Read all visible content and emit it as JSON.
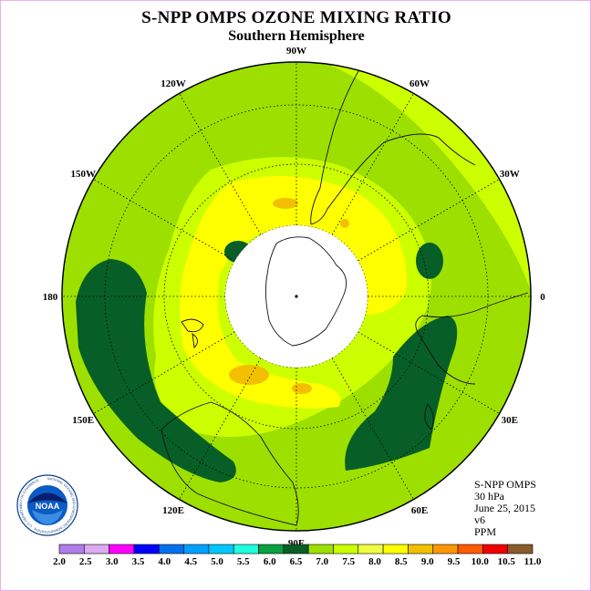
{
  "title": "S-NPP OMPS OZONE MIXING RATIO",
  "subtitle": "Southern Hemisphere",
  "info": {
    "instrument": "S-NPP OMPS",
    "pressure": "30 hPa",
    "date": "June 25, 2015",
    "version": "v6",
    "unit": "PPM"
  },
  "logo": {
    "text": "NOAA",
    "ring_text": "NATIONAL OCEANIC AND ATMOSPHERIC ADMINISTRATION · U.S. DEPARTMENT OF COMMERCE"
  },
  "map": {
    "projection": "polar-stereographic-south",
    "longitude_labels": [
      {
        "text": "90W",
        "lon": -90
      },
      {
        "text": "60W",
        "lon": -60
      },
      {
        "text": "30W",
        "lon": -30
      },
      {
        "text": "0",
        "lon": 0
      },
      {
        "text": "30E",
        "lon": 30
      },
      {
        "text": "60E",
        "lon": 60
      },
      {
        "text": "90E",
        "lon": 90
      },
      {
        "text": "120E",
        "lon": 120
      },
      {
        "text": "150E",
        "lon": 150
      },
      {
        "text": "180",
        "lon": 180
      },
      {
        "text": "150W",
        "lon": -150
      },
      {
        "text": "120W",
        "lon": -120
      }
    ],
    "colors": {
      "background_field": "#9de000",
      "high": "#ccff00",
      "very_high": "#ffff00",
      "peak": "#f2c000",
      "low": "#075f27",
      "pole_mask": "#ffffff"
    }
  },
  "colorbar": {
    "ticks": [
      "2.0",
      "2.5",
      "3.0",
      "3.5",
      "4.0",
      "4.5",
      "5.0",
      "5.5",
      "6.0",
      "6.5",
      "7.0",
      "7.5",
      "8.0",
      "8.5",
      "9.0",
      "9.5",
      "10.0",
      "10.5",
      "11.0"
    ],
    "colors": [
      "#b07ee8",
      "#dcaaf0",
      "#ff00ff",
      "#0000ff",
      "#0070ee",
      "#00a0ff",
      "#00c8ff",
      "#20ffe0",
      "#09a040",
      "#075f27",
      "#9de000",
      "#ccff00",
      "#eeff40",
      "#ffff00",
      "#f2c000",
      "#ff9600",
      "#ff5a00",
      "#ee0000",
      "#8b5a2b"
    ]
  }
}
